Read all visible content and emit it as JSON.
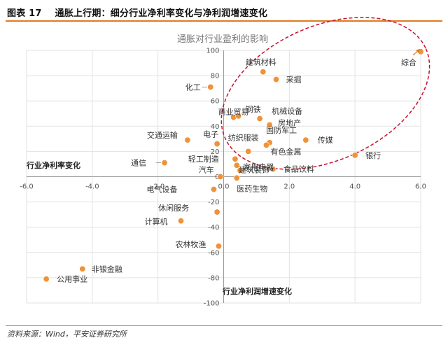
{
  "header": {
    "figure_label": "图表 17",
    "figure_title": "通胀上行期：细分行业净利率变化与净利润增速变化"
  },
  "footer": {
    "source": "资料来源：Wind，平安证券研究所"
  },
  "chart_data": {
    "type": "scatter",
    "title": "通胀对行业盈利的影响",
    "xlabel": "行业净利率变化",
    "ylabel": "行业净利润增速变化",
    "xlim": [
      -6,
      6
    ],
    "ylim": [
      -100,
      100
    ],
    "xticks": [
      -6,
      -4,
      -2,
      0,
      2,
      4,
      6
    ],
    "yticks": [
      -100,
      -80,
      -60,
      -40,
      -20,
      0,
      20,
      40,
      60,
      80,
      100
    ],
    "xtick_labels": [
      "-6.0",
      "-4.0",
      "-2.0",
      "0.0",
      "2.0",
      "4.0",
      "6.0"
    ],
    "ytick_labels": [
      "-100",
      "-80",
      "-60",
      "-40",
      "-20",
      "0",
      "20",
      "40",
      "60",
      "80",
      "100"
    ],
    "grid": true,
    "point_color": "#f0923a",
    "highlight_color": "#c8102e",
    "points": [
      {
        "label": "综合",
        "x": 6.0,
        "y": 99
      },
      {
        "label": "建筑材料",
        "x": 1.2,
        "y": 83
      },
      {
        "label": "采掘",
        "x": 1.6,
        "y": 77
      },
      {
        "label": "化工",
        "x": -0.4,
        "y": 71
      },
      {
        "label": "商业贸易",
        "x": 0.3,
        "y": 47
      },
      {
        "label": "钢铁",
        "x": 0.45,
        "y": 48
      },
      {
        "label": "机械设备",
        "x": 1.1,
        "y": 46
      },
      {
        "label": "房地产",
        "x": 1.4,
        "y": 41
      },
      {
        "label": "交通运输",
        "x": -1.1,
        "y": 29
      },
      {
        "label": "电子",
        "x": -0.2,
        "y": 26
      },
      {
        "label": "纺织服装",
        "x": 0.75,
        "y": 20
      },
      {
        "label": "国防军工",
        "x": 1.4,
        "y": 27
      },
      {
        "label": "有色金属",
        "x": 1.3,
        "y": 25
      },
      {
        "label": "传媒",
        "x": 2.5,
        "y": 29
      },
      {
        "label": "银行",
        "x": 4.0,
        "y": 17
      },
      {
        "label": "轻工制造",
        "x": 0.35,
        "y": 14
      },
      {
        "label": "通信",
        "x": -1.8,
        "y": 11
      },
      {
        "label": "家用电器",
        "x": 0.4,
        "y": 9
      },
      {
        "label": "建筑装饰",
        "x": 0.5,
        "y": 5
      },
      {
        "label": "食品饮料",
        "x": 1.5,
        "y": 6
      },
      {
        "label": "汽车",
        "x": -0.1,
        "y": 0
      },
      {
        "label": "医药生物",
        "x": 0.4,
        "y": -1
      },
      {
        "label": "电气设备",
        "x": -0.3,
        "y": -10
      },
      {
        "label": "休闲服务",
        "x": -0.2,
        "y": -28
      },
      {
        "label": "计算机",
        "x": -1.3,
        "y": -35
      },
      {
        "label": "农林牧渔",
        "x": -0.15,
        "y": -55
      },
      {
        "label": "非银金融",
        "x": -4.3,
        "y": -73
      },
      {
        "label": "公用事业",
        "x": -5.4,
        "y": -81
      }
    ]
  }
}
